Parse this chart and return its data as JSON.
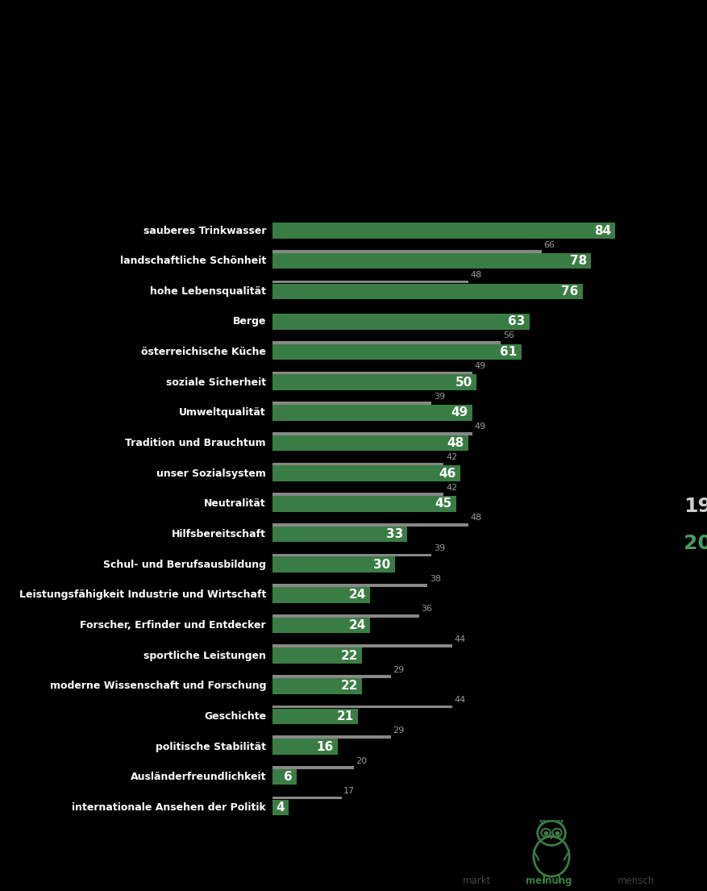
{
  "categories": [
    "sauberes Trinkwasser",
    "landschaftliche Schönheit",
    "hohe Lebensqualität",
    "Berge",
    "österreichische Küche",
    "soziale Sicherheit",
    "Umweltqualität",
    "Tradition und Brauchtum",
    "unser Sozialsystem",
    "Neutralität",
    "Hilfsbereitschaft",
    "Schul- und Berufsausbildung",
    "Leistungsfähigkeit Industrie und Wirtschaft",
    "Forscher, Erfinder und Entdecker",
    "sportliche Leistungen",
    "moderne Wissenschaft und Forschung",
    "Geschichte",
    "politische Stabilität",
    "Ausländerfreundlichkeit",
    "internationale Ansehen der Politik"
  ],
  "values_2016": [
    84,
    78,
    76,
    63,
    61,
    50,
    49,
    48,
    46,
    45,
    33,
    30,
    24,
    24,
    22,
    22,
    21,
    16,
    6,
    4
  ],
  "values_1995": [
    null,
    66,
    48,
    null,
    56,
    49,
    39,
    49,
    42,
    42,
    48,
    39,
    38,
    36,
    44,
    29,
    44,
    29,
    20,
    17
  ],
  "bar_color_2016": "#3a7d44",
  "thin_bar_color": "#888888",
  "text_white": "#ffffff",
  "text_gray": "#999999",
  "background_color": "#000000",
  "legend_1995_color": "#cccccc",
  "legend_2016_color": "#4a9e5c",
  "max_val": 90,
  "bar_height": 0.52,
  "thin_bar_height": 0.1,
  "label_fontsize": 10,
  "cat_fontsize": 9,
  "value_fontsize_2016": 11,
  "value_fontsize_1995": 8
}
